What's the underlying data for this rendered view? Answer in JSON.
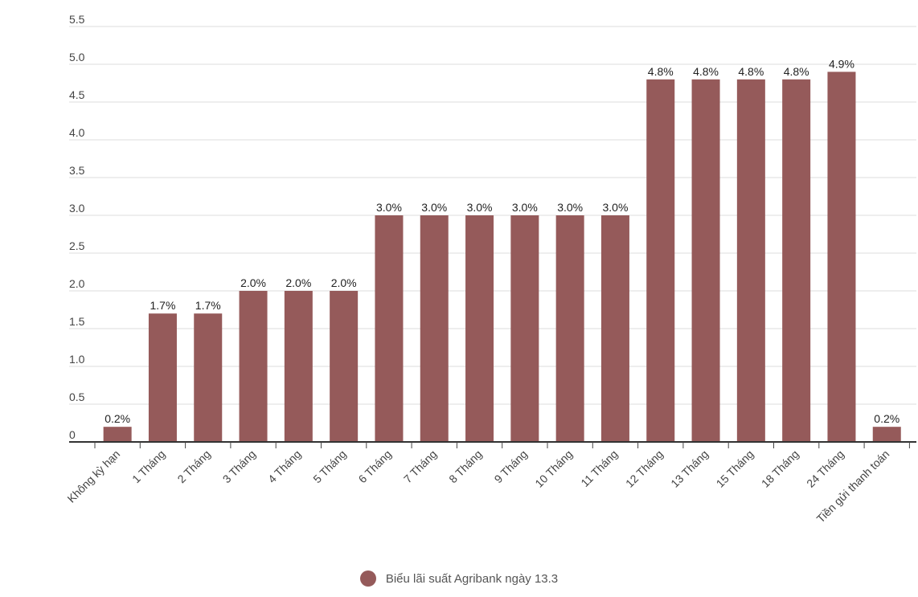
{
  "chart_data": {
    "type": "bar",
    "categories": [
      "Không kỳ hạn",
      "1 Tháng",
      "2 Tháng",
      "3 Tháng",
      "4 Tháng",
      "5 Tháng",
      "6 Tháng",
      "7 Tháng",
      "8 Tháng",
      "9 Tháng",
      "10 Tháng",
      "11 Tháng",
      "12 Tháng",
      "13 Tháng",
      "15 Tháng",
      "18 Tháng",
      "24 Tháng",
      "Tiền gửi thanh toán"
    ],
    "values": [
      0.2,
      1.7,
      1.7,
      2.0,
      2.0,
      2.0,
      3.0,
      3.0,
      3.0,
      3.0,
      3.0,
      3.0,
      4.8,
      4.8,
      4.8,
      4.8,
      4.9,
      0.2
    ],
    "data_labels": [
      "0.2%",
      "1.7%",
      "1.7%",
      "2.0%",
      "2.0%",
      "2.0%",
      "3.0%",
      "3.0%",
      "3.0%",
      "3.0%",
      "3.0%",
      "3.0%",
      "4.8%",
      "4.8%",
      "4.8%",
      "4.8%",
      "4.9%",
      "0.2%"
    ],
    "y_ticks": [
      "0",
      "0.5",
      "1.0",
      "1.5",
      "2.0",
      "2.5",
      "3.0",
      "3.5",
      "4.0",
      "4.5",
      "5.0",
      "5.5"
    ],
    "ylim": [
      0,
      5.5
    ],
    "grid": true,
    "series": [
      {
        "name": "Biểu lãi suất Agribank ngày 13.3",
        "color": "#955a5a"
      }
    ],
    "legend_position": "bottom-center"
  }
}
